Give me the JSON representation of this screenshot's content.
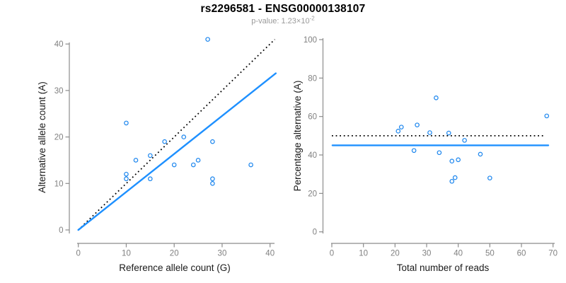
{
  "header": {
    "title": "rs2296581 - ENSG00000138107",
    "subtitle_prefix": "p-value: 1.23×10",
    "subtitle_exponent": "-2"
  },
  "colors": {
    "point": "#1C86EE",
    "fit_line": "#1E90FF",
    "reference_line": "#000000",
    "axis": "#8c8c8c",
    "tick_label": "#808080",
    "axis_title": "#1a1a1a",
    "title": "#000000",
    "subtitle": "#9a9a9a"
  },
  "chart_data": [
    {
      "type": "scatter",
      "title": "",
      "xlabel": "Reference allele count (G)",
      "ylabel": "Alternative allele count (A)",
      "xticks": [
        0,
        10,
        20,
        30,
        40
      ],
      "yticks": [
        0,
        10,
        20,
        30,
        40
      ],
      "xlim": [
        0,
        41
      ],
      "ylim": [
        0,
        41
      ],
      "grid": false,
      "points": [
        [
          27,
          41
        ],
        [
          10,
          23
        ],
        [
          22,
          20
        ],
        [
          18,
          19
        ],
        [
          28,
          19
        ],
        [
          15,
          16
        ],
        [
          12,
          15
        ],
        [
          25,
          15
        ],
        [
          20,
          14
        ],
        [
          24,
          14
        ],
        [
          36,
          14
        ],
        [
          10,
          12
        ],
        [
          10,
          11
        ],
        [
          15,
          11
        ],
        [
          28,
          11
        ],
        [
          28,
          10
        ]
      ],
      "lines": [
        {
          "name": "identity-line",
          "style": "dotted",
          "color": "#000000",
          "from": [
            0,
            0
          ],
          "to": [
            41,
            41
          ]
        },
        {
          "name": "fit-line",
          "style": "solid",
          "color": "#1E90FF",
          "from": [
            0,
            0
          ],
          "to": [
            41.2,
            33.7
          ]
        }
      ]
    },
    {
      "type": "scatter",
      "title": "",
      "xlabel": "Total number of reads",
      "ylabel": "Percentage alternative (A)",
      "xticks": [
        0,
        10,
        20,
        30,
        40,
        50,
        60,
        70
      ],
      "yticks": [
        0,
        20,
        40,
        60,
        80,
        100
      ],
      "xlim": [
        0,
        70
      ],
      "ylim": [
        0,
        100
      ],
      "grid": false,
      "points": [
        [
          68,
          60.3
        ],
        [
          33,
          69.7
        ],
        [
          27,
          55.6
        ],
        [
          22,
          54.5
        ],
        [
          21,
          52.4
        ],
        [
          31,
          51.6
        ],
        [
          37,
          51.4
        ],
        [
          42,
          47.6
        ],
        [
          26,
          42.3
        ],
        [
          34,
          41.2
        ],
        [
          47,
          40.4
        ],
        [
          40,
          37.5
        ],
        [
          38,
          36.8
        ],
        [
          50,
          28.0
        ],
        [
          39,
          28.2
        ],
        [
          38,
          26.3
        ]
      ],
      "lines": [
        {
          "name": "expected-ratio-line",
          "style": "dotted",
          "color": "#000000",
          "from": [
            0,
            50
          ],
          "to": [
            67.2,
            50
          ]
        },
        {
          "name": "mean-ratio-line",
          "style": "solid",
          "color": "#1E90FF",
          "from": [
            0.2,
            45
          ],
          "to": [
            68.5,
            45
          ]
        }
      ]
    }
  ]
}
